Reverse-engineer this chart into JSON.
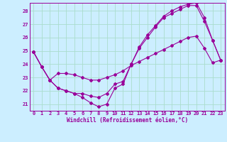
{
  "xlabel": "Windchill (Refroidissement éolien,°C)",
  "bg_color": "#cceeff",
  "grid_color": "#aaddcc",
  "line_color": "#990099",
  "ylim": [
    20.5,
    28.6
  ],
  "xlim": [
    -0.5,
    23.5
  ],
  "yticks": [
    21,
    22,
    23,
    24,
    25,
    26,
    27,
    28
  ],
  "xticks": [
    0,
    1,
    2,
    3,
    4,
    5,
    6,
    7,
    8,
    9,
    10,
    11,
    12,
    13,
    14,
    15,
    16,
    17,
    18,
    19,
    20,
    21,
    22,
    23
  ],
  "series1": [
    24.9,
    23.8,
    22.8,
    23.3,
    23.3,
    23.2,
    23.0,
    22.8,
    22.8,
    23.0,
    23.2,
    23.5,
    23.9,
    24.2,
    24.5,
    24.8,
    25.1,
    25.4,
    25.7,
    26.0,
    26.1,
    25.2,
    24.1,
    24.3
  ],
  "series2": [
    24.9,
    23.8,
    22.8,
    22.2,
    22.0,
    21.8,
    21.8,
    21.6,
    21.5,
    21.8,
    22.5,
    22.7,
    24.0,
    25.2,
    26.0,
    26.8,
    27.5,
    27.8,
    28.1,
    28.4,
    28.4,
    27.2,
    25.8,
    24.3
  ],
  "series3": [
    24.9,
    23.8,
    22.8,
    22.2,
    22.0,
    21.8,
    21.5,
    21.1,
    20.8,
    21.0,
    22.2,
    22.5,
    24.0,
    25.3,
    26.2,
    26.9,
    27.6,
    28.0,
    28.3,
    28.5,
    28.6,
    27.5,
    25.8,
    24.3
  ]
}
